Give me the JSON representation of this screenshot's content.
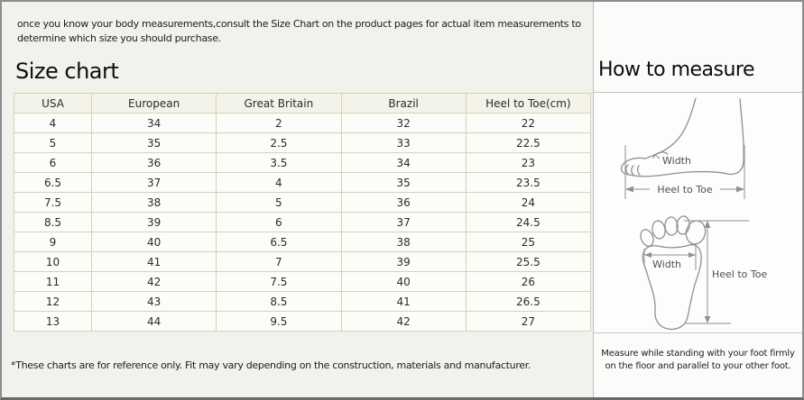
{
  "page": {
    "intro_line1": "once you know your body measurements,consult the Size Chart on the product pages for actual item measurements to",
    "intro_line2": "determine which size you should purchase."
  },
  "size_chart": {
    "title": "Size chart",
    "footnote": "*These charts are for reference only. Fit may vary depending on the construction, materials and manufacturer."
  },
  "how_to_measure": {
    "title": "How to measure",
    "side_view_diagram": {
      "width_label": "Width",
      "length_label": "Heel to Toe"
    },
    "top_view_diagram": {
      "width_label": "Width",
      "length_label": "Heel to Toe"
    },
    "instruction_line1": "Measure while standing with your foot firmly",
    "instruction_line2": "on the floor and parallel to your other foot."
  },
  "colors": {
    "page_background": "#f1f1ee",
    "right_panel_background": "#fbfbf9",
    "outer_border": "#8d8d8d",
    "table_border": "#d8d2b4",
    "table_header_background": "#f3f3ea",
    "table_cell_background": "#fcfcf8",
    "diagram_line": "#8f8f8f"
  },
  "chart_data": {
    "type": "table",
    "title": "Size chart",
    "columns": [
      "USA",
      "European",
      "Great Britain",
      "Brazil",
      "Heel to Toe(cm)"
    ],
    "rows": [
      [
        "4",
        "34",
        "2",
        "32",
        "22"
      ],
      [
        "5",
        "35",
        "2.5",
        "33",
        "22.5"
      ],
      [
        "6",
        "36",
        "3.5",
        "34",
        "23"
      ],
      [
        "6.5",
        "37",
        "4",
        "35",
        "23.5"
      ],
      [
        "7.5",
        "38",
        "5",
        "36",
        "24"
      ],
      [
        "8.5",
        "39",
        "6",
        "37",
        "24.5"
      ],
      [
        "9",
        "40",
        "6.5",
        "38",
        "25"
      ],
      [
        "10",
        "41",
        "7",
        "39",
        "25.5"
      ],
      [
        "11",
        "42",
        "7.5",
        "40",
        "26"
      ],
      [
        "12",
        "43",
        "8.5",
        "41",
        "26.5"
      ],
      [
        "13",
        "44",
        "9.5",
        "42",
        "27"
      ]
    ]
  }
}
